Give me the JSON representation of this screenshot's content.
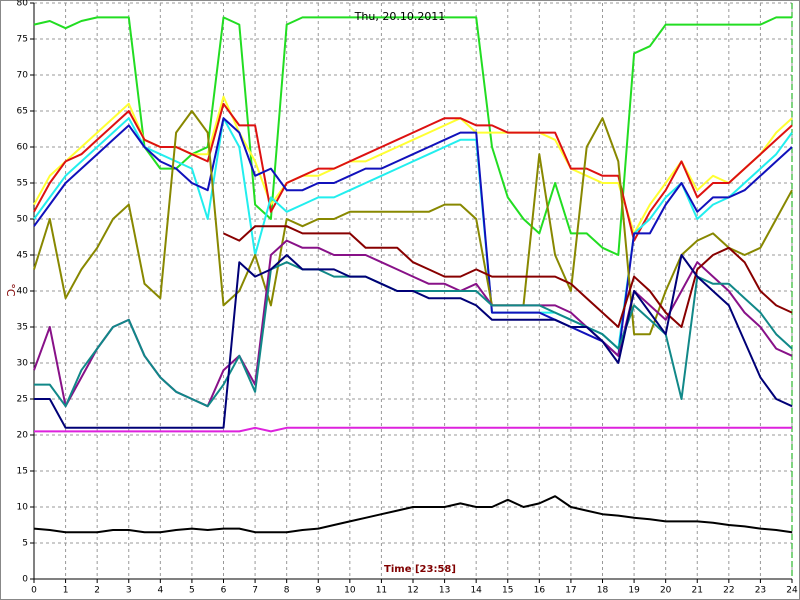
{
  "chart_data": {
    "type": "line",
    "title": "Thu, 20.10.2011",
    "x_label": "Time [23:58]",
    "y_label": "°C",
    "x": [
      0,
      0.5,
      1,
      1.5,
      2,
      2.5,
      3,
      3.5,
      4,
      4.5,
      5,
      5.5,
      6,
      6.5,
      7,
      7.5,
      8,
      8.5,
      9,
      9.5,
      10,
      10.5,
      11,
      11.5,
      12,
      12.5,
      13,
      13.5,
      14,
      14.5,
      15,
      15.5,
      16,
      16.5,
      17,
      17.5,
      18,
      18.5,
      19,
      19.5,
      20,
      20.5,
      21,
      21.5,
      22,
      22.5,
      23,
      23.5,
      24
    ],
    "xlim": [
      0,
      24
    ],
    "xticks": [
      0,
      1,
      2,
      3,
      4,
      5,
      6,
      7,
      8,
      9,
      10,
      11,
      12,
      13,
      14,
      15,
      16,
      17,
      18,
      19,
      20,
      21,
      22,
      23,
      24
    ],
    "ylim": [
      0,
      80
    ],
    "yticks": [
      0,
      5,
      10,
      15,
      20,
      25,
      30,
      35,
      40,
      45,
      50,
      55,
      60,
      65,
      70,
      75,
      80
    ],
    "grid": true,
    "series": [
      {
        "color": "#22dd22",
        "values": [
          77,
          77.5,
          76.5,
          77.5,
          78,
          78,
          78,
          60,
          57,
          57,
          59,
          60,
          78,
          77,
          52,
          50,
          77,
          78,
          78,
          78,
          78,
          78,
          78,
          78,
          78,
          78,
          78,
          78,
          78,
          60,
          53,
          50,
          48,
          55,
          48,
          48,
          46,
          45,
          73,
          74,
          77,
          77,
          77,
          77,
          77,
          77,
          77,
          78,
          78
        ]
      },
      {
        "color": "#ffff33",
        "values": [
          52,
          56,
          58,
          60,
          62,
          64,
          66,
          61,
          60,
          60,
          59,
          59,
          67,
          62,
          58,
          52,
          55,
          56,
          56,
          57,
          58,
          58,
          59,
          60,
          61,
          62,
          63,
          64,
          62,
          62,
          62,
          62,
          62,
          61,
          57,
          56,
          55,
          55,
          48,
          52,
          55,
          58,
          54,
          56,
          55,
          57,
          59,
          62,
          64
        ]
      },
      {
        "color": "#dd1111",
        "values": [
          51,
          55,
          58,
          59,
          61,
          63,
          65,
          61,
          60,
          60,
          59,
          58,
          66,
          63,
          63,
          51,
          55,
          56,
          57,
          57,
          58,
          59,
          60,
          61,
          62,
          63,
          64,
          64,
          63,
          63,
          62,
          62,
          62,
          62,
          57,
          57,
          56,
          56,
          47,
          51,
          54,
          58,
          53,
          55,
          55,
          57,
          59,
          61,
          63
        ]
      },
      {
        "color": "#22eeee",
        "values": [
          50,
          53,
          56,
          58,
          60,
          62,
          64,
          60,
          59,
          58,
          57,
          50,
          64,
          60,
          45,
          53,
          51,
          52,
          53,
          53,
          54,
          55,
          56,
          57,
          58,
          59,
          60,
          61,
          61,
          37,
          37,
          37,
          37,
          37,
          36,
          35,
          34,
          32,
          48,
          50,
          53,
          55,
          50,
          52,
          53,
          55,
          57,
          59,
          62
        ]
      },
      {
        "color": "#1111bb",
        "values": [
          49,
          52,
          55,
          57,
          59,
          61,
          63,
          60,
          58,
          57,
          55,
          54,
          64,
          62,
          56,
          57,
          54,
          54,
          55,
          55,
          56,
          57,
          57,
          58,
          59,
          60,
          61,
          62,
          62,
          37,
          37,
          37,
          37,
          36,
          35,
          34,
          33,
          31,
          48,
          48,
          52,
          55,
          51,
          53,
          53,
          54,
          56,
          58,
          60
        ]
      },
      {
        "color": "#888800",
        "values": [
          43,
          50,
          39,
          43,
          46,
          50,
          52,
          41,
          39,
          62,
          65,
          62,
          38,
          40,
          45,
          38,
          50,
          49,
          50,
          50,
          51,
          51,
          51,
          51,
          51,
          51,
          52,
          52,
          50,
          38,
          38,
          38,
          59,
          45,
          40,
          60,
          64,
          58,
          34,
          34,
          40,
          45,
          47,
          48,
          46,
          45,
          46,
          50,
          54
        ]
      },
      {
        "color": "#881188",
        "values": [
          29,
          35,
          24,
          28,
          32,
          35,
          36,
          31,
          28,
          26,
          25,
          24,
          29,
          31,
          27,
          45,
          47,
          46,
          46,
          45,
          45,
          45,
          44,
          43,
          42,
          41,
          41,
          40,
          41,
          38,
          38,
          38,
          38,
          38,
          37,
          35,
          33,
          31,
          40,
          38,
          36,
          40,
          44,
          42,
          40,
          37,
          35,
          32,
          31
        ]
      },
      {
        "color": "#118888",
        "values": [
          27,
          27,
          24,
          29,
          32,
          35,
          36,
          31,
          28,
          26,
          25,
          24,
          27,
          31,
          26,
          43,
          44,
          43,
          43,
          42,
          42,
          42,
          41,
          40,
          40,
          40,
          40,
          40,
          40,
          38,
          38,
          38,
          38,
          37,
          36,
          35,
          34,
          32,
          38,
          36,
          34,
          25,
          42,
          41,
          41,
          39,
          37,
          34,
          32
        ]
      },
      {
        "color": "#880000",
        "values": [
          null,
          null,
          null,
          null,
          null,
          null,
          null,
          null,
          null,
          null,
          null,
          null,
          48,
          47,
          49,
          49,
          49,
          48,
          48,
          48,
          48,
          46,
          46,
          46,
          44,
          43,
          42,
          42,
          43,
          42,
          42,
          42,
          42,
          42,
          41,
          39,
          37,
          35,
          42,
          40,
          37,
          35,
          43,
          45,
          46,
          44,
          40,
          38,
          37
        ]
      },
      {
        "color": "#000077",
        "values": [
          25,
          25,
          21,
          21,
          21,
          21,
          21,
          21,
          21,
          21,
          21,
          21,
          21,
          44,
          42,
          43,
          45,
          43,
          43,
          43,
          42,
          42,
          41,
          40,
          40,
          39,
          39,
          39,
          38,
          36,
          36,
          36,
          36,
          36,
          35,
          35,
          33,
          30,
          40,
          37,
          34,
          45,
          42,
          40,
          38,
          33,
          28,
          25,
          24
        ]
      },
      {
        "color": "#dd22dd",
        "values": [
          20.5,
          20.5,
          20.5,
          20.5,
          20.5,
          20.5,
          20.5,
          20.5,
          20.5,
          20.5,
          20.5,
          20.5,
          20.5,
          20.5,
          21,
          20.5,
          21,
          21,
          21,
          21,
          21,
          21,
          21,
          21,
          21,
          21,
          21,
          21,
          21,
          21,
          21,
          21,
          21,
          21,
          21,
          21,
          21,
          21,
          21,
          21,
          21,
          21,
          21,
          21,
          21,
          21,
          21,
          21,
          21
        ]
      },
      {
        "color": "#000000",
        "values": [
          7,
          6.8,
          6.5,
          6.5,
          6.5,
          6.8,
          6.8,
          6.5,
          6.5,
          6.8,
          7,
          6.8,
          7,
          7,
          6.5,
          6.5,
          6.5,
          6.8,
          7,
          7.5,
          8,
          8.5,
          9,
          9.5,
          10,
          10,
          10,
          10.5,
          10,
          10,
          11,
          10,
          10.5,
          11.5,
          10,
          9.5,
          9,
          8.8,
          8.5,
          8.3,
          8,
          8,
          8,
          7.8,
          7.5,
          7.3,
          7,
          6.8,
          6.5
        ]
      }
    ]
  }
}
